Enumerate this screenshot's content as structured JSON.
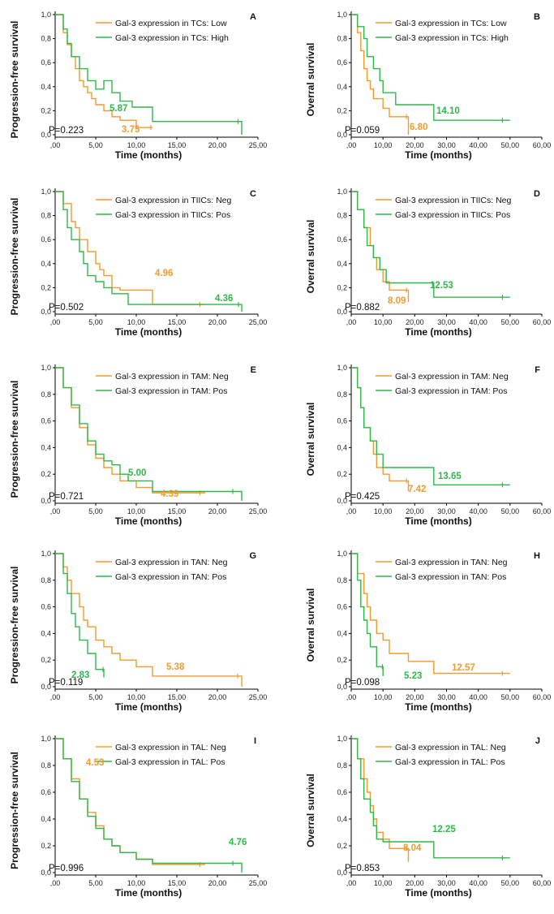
{
  "colors": {
    "orange": "#f39a2e",
    "green": "#2fb84a"
  },
  "chart_data": [
    {
      "type": "line",
      "letter": "A",
      "ylabel": "Progression-free survival",
      "xlabel": "Time (months)",
      "xticks": [
        ",00",
        "5,00",
        "10,00",
        "15,00",
        "20,00",
        "25,00"
      ],
      "xlim": [
        0,
        25
      ],
      "yticks": [
        "0,0",
        "0,2",
        "0,4",
        "0,6",
        "0,8",
        "1,0"
      ],
      "ylim": [
        0,
        1
      ],
      "pvalue": "P=0.223",
      "series": [
        {
          "name": "Gal-3 expression in TCs: Low",
          "color": "#f39a2e",
          "median": "3.75",
          "x": [
            0,
            1,
            1.5,
            2,
            2.5,
            3,
            3.5,
            4,
            4.5,
            5,
            6,
            7,
            8,
            10,
            12
          ],
          "y": [
            1,
            0.85,
            0.75,
            0.65,
            0.55,
            0.45,
            0.4,
            0.35,
            0.3,
            0.25,
            0.2,
            0.15,
            0.12,
            0.06,
            0.06
          ]
        },
        {
          "name": "Gal-3 expression in TCs: High",
          "color": "#2fb84a",
          "median": "5.87",
          "x": [
            0,
            1,
            1.5,
            2,
            3,
            4,
            5,
            6,
            7,
            8,
            9.5,
            12,
            18.5,
            23
          ],
          "y": [
            1,
            0.88,
            0.76,
            0.65,
            0.55,
            0.45,
            0.38,
            0.45,
            0.35,
            0.28,
            0.23,
            0.11,
            0.11,
            0
          ]
        }
      ]
    },
    {
      "type": "line",
      "letter": "B",
      "ylabel": "Overral survival",
      "xlabel": "Time (months)",
      "xticks": [
        ",00",
        "10,00",
        "20,00",
        "30,00",
        "40,00",
        "50,00",
        "60,00"
      ],
      "xlim": [
        0,
        60
      ],
      "yticks": [
        "0,0",
        "0,2",
        "0,4",
        "0,6",
        "0,8",
        "1,0"
      ],
      "ylim": [
        0,
        1
      ],
      "pvalue": "P=0.059",
      "series": [
        {
          "name": "Gal-3 expression in TCs: Low",
          "color": "#f39a2e",
          "median": "6.80",
          "x": [
            0,
            2,
            3,
            4,
            5,
            6,
            7,
            8,
            10,
            12,
            18
          ],
          "y": [
            1,
            0.85,
            0.7,
            0.55,
            0.45,
            0.38,
            0.3,
            0.3,
            0.22,
            0.15,
            0
          ]
        },
        {
          "name": "Gal-3 expression in TCs: High",
          "color": "#2fb84a",
          "median": "14.10",
          "x": [
            0,
            2,
            4,
            5,
            7,
            9,
            10,
            12,
            14,
            20,
            26,
            50
          ],
          "y": [
            1,
            0.9,
            0.8,
            0.65,
            0.55,
            0.45,
            0.35,
            0.35,
            0.25,
            0.25,
            0.12,
            0.12
          ]
        }
      ]
    },
    {
      "type": "line",
      "letter": "C",
      "ylabel": "Progression-free survival",
      "xlabel": "Time (months)",
      "xticks": [
        ",00",
        "5,00",
        "10,00",
        "15,00",
        "20,00",
        "25,00"
      ],
      "xlim": [
        0,
        25
      ],
      "yticks": [
        "0,0",
        "0,2",
        "0,4",
        "0,6",
        "0,8",
        "1,0"
      ],
      "ylim": [
        0,
        1
      ],
      "pvalue": "P=0.502",
      "series": [
        {
          "name": "Gal-3 expression in TIICs: Neg",
          "color": "#f39a2e",
          "median": "4.96",
          "x": [
            0,
            1,
            2,
            2.5,
            3,
            4,
            5,
            5.5,
            6,
            7,
            8,
            12,
            18.5
          ],
          "y": [
            1,
            0.9,
            0.75,
            0.7,
            0.6,
            0.5,
            0.4,
            0.35,
            0.3,
            0.2,
            0.18,
            0.06,
            0.06
          ]
        },
        {
          "name": "Gal-3 expression in TIICs: Pos",
          "color": "#2fb84a",
          "median": "4.36",
          "x": [
            0,
            1,
            1.5,
            2,
            3,
            3.5,
            4,
            5,
            6,
            7,
            9,
            12,
            19,
            23
          ],
          "y": [
            1,
            0.85,
            0.7,
            0.6,
            0.5,
            0.4,
            0.3,
            0.25,
            0.2,
            0.15,
            0.06,
            0.06,
            0.06,
            0
          ]
        }
      ]
    },
    {
      "type": "line",
      "letter": "D",
      "ylabel": "Overral survival",
      "xlabel": "Time (months)",
      "xticks": [
        ",00",
        "10,00",
        "20,00",
        "30,00",
        "40,00",
        "50,00",
        "60,00"
      ],
      "xlim": [
        0,
        60
      ],
      "yticks": [
        "0,0",
        "0,2",
        "0,4",
        "0,6",
        "0,8",
        "1,0"
      ],
      "ylim": [
        0,
        1
      ],
      "pvalue": "P=0.882",
      "series": [
        {
          "name": "Gal-3 expression in TIICs: Neg",
          "color": "#f39a2e",
          "median": "8.09",
          "x": [
            0,
            2,
            4,
            6,
            7,
            8,
            10,
            12,
            18
          ],
          "y": [
            1,
            0.85,
            0.7,
            0.55,
            0.45,
            0.35,
            0.25,
            0.18,
            0.08
          ]
        },
        {
          "name": "Gal-3 expression in TIICs: Pos",
          "color": "#2fb84a",
          "median": "12.53",
          "x": [
            0,
            2,
            4,
            5,
            7,
            9,
            11,
            26,
            50
          ],
          "y": [
            1,
            0.85,
            0.7,
            0.55,
            0.45,
            0.35,
            0.24,
            0.12,
            0.12
          ]
        }
      ]
    },
    {
      "type": "line",
      "letter": "E",
      "ylabel": "Progression-free survival",
      "xlabel": "Time (months)",
      "xticks": [
        ",00",
        "5,00",
        "10,00",
        "15,00",
        "20,00",
        "25,00"
      ],
      "xlim": [
        0,
        25
      ],
      "yticks": [
        "0,0",
        "0,2",
        "0,4",
        "0,6",
        "0,8",
        "1,0"
      ],
      "ylim": [
        0,
        1
      ],
      "pvalue": "P=0.721",
      "series": [
        {
          "name": "Gal-3 expression in TAM: Neg",
          "color": "#f39a2e",
          "median": "4.39",
          "x": [
            0,
            1,
            2,
            3,
            4,
            5,
            6,
            7,
            8,
            10,
            12,
            18.5
          ],
          "y": [
            1,
            0.85,
            0.7,
            0.55,
            0.42,
            0.32,
            0.25,
            0.2,
            0.15,
            0.1,
            0.06,
            0.06
          ]
        },
        {
          "name": "Gal-3 expression in TAM: Pos",
          "color": "#2fb84a",
          "median": "5.00",
          "x": [
            0,
            1,
            2,
            3,
            4,
            5,
            6,
            7,
            8,
            9,
            12,
            23
          ],
          "y": [
            1,
            0.85,
            0.72,
            0.58,
            0.45,
            0.35,
            0.3,
            0.27,
            0.2,
            0.15,
            0.07,
            0
          ]
        }
      ]
    },
    {
      "type": "line",
      "letter": "F",
      "ylabel": "Overral survival",
      "xlabel": "Time (months)",
      "xticks": [
        ",00",
        "10,00",
        "20,00",
        "30,00",
        "40,00",
        "50,00",
        "60,00"
      ],
      "xlim": [
        0,
        60
      ],
      "yticks": [
        "0,0",
        "0,2",
        "0,4",
        "0,6",
        "0,8",
        "1,0"
      ],
      "ylim": [
        0,
        1
      ],
      "pvalue": "P=0.425",
      "series": [
        {
          "name": "Gal-3 expression in TAM: Neg",
          "color": "#f39a2e",
          "median": "7.42",
          "x": [
            0,
            2,
            3,
            4,
            6,
            7,
            8,
            10,
            12,
            18
          ],
          "y": [
            1,
            0.85,
            0.7,
            0.55,
            0.45,
            0.35,
            0.25,
            0.2,
            0.15,
            0.07
          ]
        },
        {
          "name": "Gal-3 expression in TAM: Pos",
          "color": "#2fb84a",
          "median": "13.65",
          "x": [
            0,
            2,
            3,
            4,
            6,
            8,
            10,
            12,
            26,
            50
          ],
          "y": [
            1,
            0.85,
            0.7,
            0.55,
            0.45,
            0.35,
            0.25,
            0.25,
            0.12,
            0.12
          ]
        }
      ]
    },
    {
      "type": "line",
      "letter": "G",
      "ylabel": "Progression-free survival",
      "xlabel": "Time (months)",
      "xticks": [
        ",00",
        "5,00",
        "10,00",
        "15,00",
        "20,00",
        "25,00"
      ],
      "xlim": [
        0,
        25
      ],
      "yticks": [
        "0,0",
        "0,2",
        "0,4",
        "0,6",
        "0,8",
        "1,0"
      ],
      "ylim": [
        0,
        1
      ],
      "pvalue": "P=0.119",
      "series": [
        {
          "name": "Gal-3 expression in TAN: Neg",
          "color": "#f39a2e",
          "median": "5.38",
          "x": [
            0,
            1,
            1.5,
            2,
            3,
            3.5,
            4,
            5,
            6,
            7,
            8,
            10,
            12,
            18,
            23
          ],
          "y": [
            1,
            0.9,
            0.8,
            0.7,
            0.6,
            0.5,
            0.45,
            0.35,
            0.3,
            0.25,
            0.2,
            0.15,
            0.08,
            0.08,
            0
          ]
        },
        {
          "name": "Gal-3 expression in TAN: Pos",
          "color": "#2fb84a",
          "median": "2.83",
          "x": [
            0,
            1,
            1.5,
            2,
            2.5,
            3,
            4,
            5,
            6
          ],
          "y": [
            1,
            0.85,
            0.7,
            0.55,
            0.45,
            0.35,
            0.25,
            0.13,
            0.07
          ]
        }
      ]
    },
    {
      "type": "line",
      "letter": "H",
      "ylabel": "Overral survival",
      "xlabel": "Time (months)",
      "xticks": [
        ",00",
        "10,00",
        "20,00",
        "30,00",
        "40,00",
        "50,00",
        "60,00"
      ],
      "xlim": [
        0,
        60
      ],
      "yticks": [
        "0,0",
        "0,2",
        "0,4",
        "0,6",
        "0,8",
        "1,0"
      ],
      "ylim": [
        0,
        1
      ],
      "pvalue": "P=0.098",
      "series": [
        {
          "name": "Gal-3 expression in TAN: Neg",
          "color": "#f39a2e",
          "median": "12.57",
          "x": [
            0,
            2,
            4,
            5,
            6,
            8,
            10,
            12,
            18,
            26,
            50
          ],
          "y": [
            1,
            0.85,
            0.7,
            0.6,
            0.5,
            0.4,
            0.35,
            0.25,
            0.19,
            0.1,
            0.1
          ]
        },
        {
          "name": "Gal-3 expression in TAN: Pos",
          "color": "#2fb84a",
          "median": "5.23",
          "x": [
            0,
            2,
            3,
            4,
            5,
            6,
            8,
            10
          ],
          "y": [
            1,
            0.8,
            0.6,
            0.5,
            0.4,
            0.3,
            0.15,
            0.08
          ]
        }
      ]
    },
    {
      "type": "line",
      "letter": "I",
      "ylabel": "Progression-free survival",
      "xlabel": "Time (months)",
      "xticks": [
        ",00",
        "5,00",
        "10,00",
        "15,00",
        "20,00",
        "25,00"
      ],
      "xlim": [
        0,
        25
      ],
      "yticks": [
        "0,0",
        "0,2",
        "0,4",
        "0,6",
        "0,8",
        "1,0"
      ],
      "ylim": [
        0,
        1
      ],
      "pvalue": "P=0.996",
      "series": [
        {
          "name": "Gal-3 expression in TAL: Neg",
          "color": "#f39a2e",
          "median": "4.53",
          "x": [
            0,
            1,
            2,
            3,
            4,
            5,
            6,
            7,
            8,
            10,
            12,
            18.5
          ],
          "y": [
            1,
            0.85,
            0.7,
            0.55,
            0.45,
            0.35,
            0.25,
            0.2,
            0.15,
            0.1,
            0.06,
            0.06
          ]
        },
        {
          "name": "Gal-3 expression in TAL: Pos",
          "color": "#2fb84a",
          "median": "4.76",
          "x": [
            0,
            1,
            2,
            3,
            4,
            5,
            6,
            7,
            8,
            10,
            12,
            23
          ],
          "y": [
            1,
            0.85,
            0.68,
            0.55,
            0.42,
            0.33,
            0.25,
            0.2,
            0.15,
            0.1,
            0.07,
            0
          ]
        }
      ]
    },
    {
      "type": "line",
      "letter": "J",
      "ylabel": "Overral survival",
      "xlabel": "Time (months)",
      "xticks": [
        ",00",
        "10,00",
        "20,00",
        "30,00",
        "40,00",
        "50,00",
        "60,00"
      ],
      "xlim": [
        0,
        60
      ],
      "yticks": [
        "0,0",
        "0,2",
        "0,4",
        "0,6",
        "0,8",
        "1,0"
      ],
      "ylim": [
        0,
        1
      ],
      "pvalue": "P=0.853",
      "series": [
        {
          "name": "Gal-3 expression in TAL: Neg",
          "color": "#f39a2e",
          "median": "8.04",
          "x": [
            0,
            2,
            4,
            5,
            6,
            7,
            8,
            10,
            12,
            18
          ],
          "y": [
            1,
            0.85,
            0.7,
            0.6,
            0.5,
            0.4,
            0.3,
            0.25,
            0.18,
            0.08
          ]
        },
        {
          "name": "Gal-3 expression in TAL: Pos",
          "color": "#2fb84a",
          "median": "12.25",
          "x": [
            0,
            2,
            3,
            4,
            6,
            7,
            8,
            10,
            26,
            50
          ],
          "y": [
            1,
            0.85,
            0.7,
            0.55,
            0.45,
            0.35,
            0.25,
            0.23,
            0.11,
            0.11
          ]
        }
      ]
    }
  ]
}
